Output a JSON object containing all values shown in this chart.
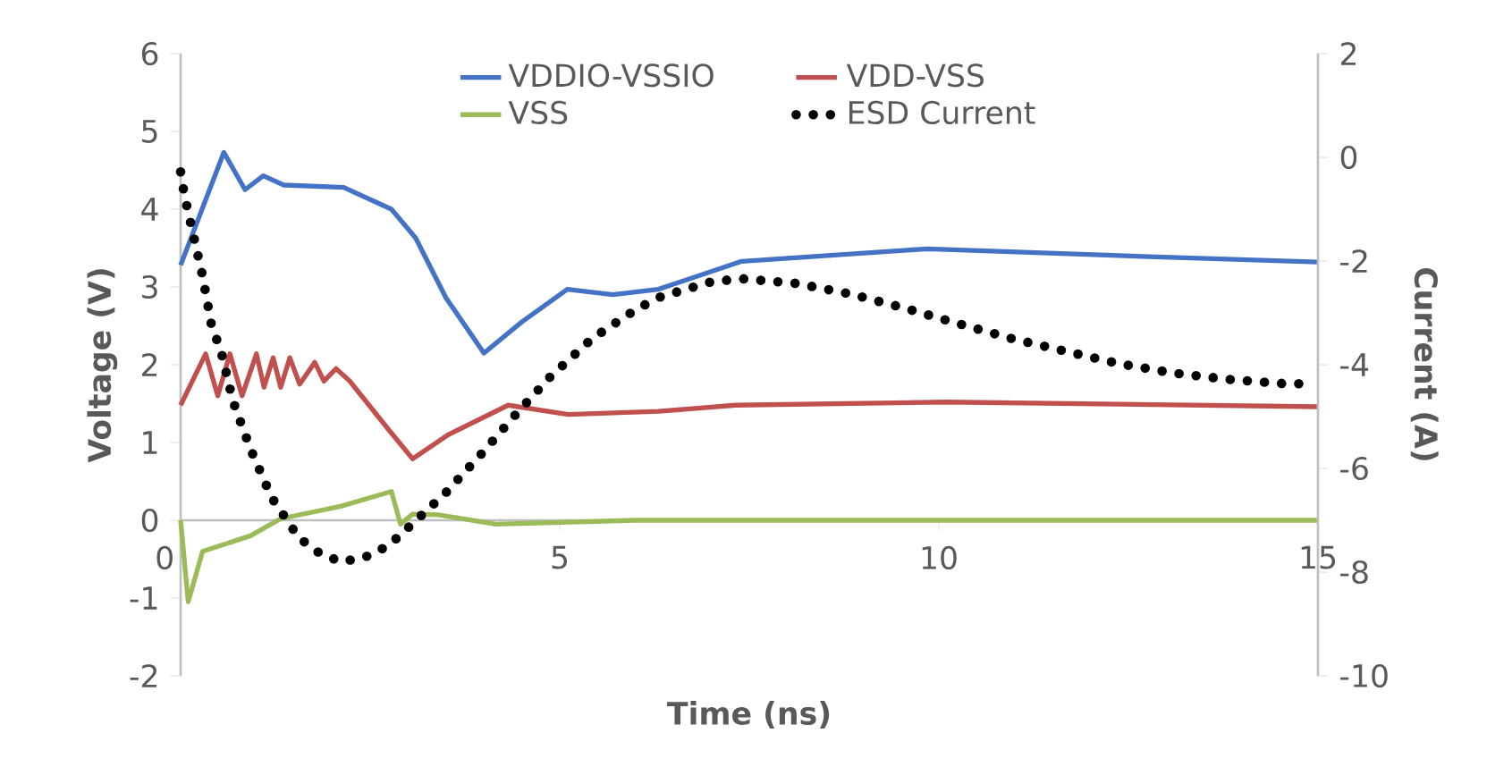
{
  "chart_data": {
    "type": "line",
    "xlabel": "Time (ns)",
    "ylabel": "Voltage (V)",
    "y2label": "Current (A)",
    "xlim": [
      0,
      15
    ],
    "xticks": [
      0,
      5,
      10,
      15
    ],
    "ylim": [
      -2,
      6
    ],
    "yticks": [
      -2,
      -1,
      0,
      1,
      2,
      3,
      4,
      5,
      6
    ],
    "y2lim": [
      -10,
      2
    ],
    "y2ticks": [
      -10,
      -8,
      -6,
      -4,
      -2,
      0,
      2
    ],
    "legend": "top",
    "grid": false,
    "marker": "none",
    "series": [
      {
        "name": "VDDIO-VSSIO",
        "color": "#4472c4",
        "line_style": "solid",
        "x": [
          0,
          0.57,
          0.85,
          1.09,
          1.36,
          2.15,
          2.78,
          3.1,
          3.5,
          4.0,
          4.5,
          5.1,
          5.7,
          6.3,
          7.4,
          9.85,
          12.46,
          15
        ],
        "values": [
          3.28,
          4.73,
          4.25,
          4.43,
          4.31,
          4.28,
          4.0,
          3.63,
          2.86,
          2.15,
          2.55,
          2.97,
          2.9,
          2.97,
          3.33,
          3.49,
          3.4,
          3.32
        ]
      },
      {
        "name": "VDD-VSS",
        "color": "#c0504d",
        "line_style": "solid",
        "x": [
          0,
          0.33,
          0.49,
          0.65,
          0.81,
          1.0,
          1.1,
          1.22,
          1.32,
          1.44,
          1.57,
          1.77,
          1.89,
          2.05,
          2.23,
          2.74,
          3.06,
          3.53,
          4.32,
          5.11,
          6.3,
          7.32,
          10.09,
          15
        ],
        "values": [
          1.48,
          2.14,
          1.6,
          2.14,
          1.6,
          2.14,
          1.71,
          2.09,
          1.71,
          2.09,
          1.75,
          2.03,
          1.79,
          1.95,
          1.79,
          1.17,
          0.79,
          1.1,
          1.48,
          1.36,
          1.4,
          1.48,
          1.52,
          1.46
        ]
      },
      {
        "name": "VSS",
        "color": "#9bbb59",
        "line_style": "solid",
        "x": [
          0,
          0.1,
          0.29,
          0.92,
          1.32,
          2.11,
          2.78,
          2.9,
          3.06,
          3.4,
          4.16,
          6,
          15
        ],
        "values": [
          0,
          -1.05,
          -0.4,
          -0.2,
          0.02,
          0.18,
          0.37,
          -0.05,
          0.08,
          0.07,
          -0.05,
          0,
          0
        ]
      },
      {
        "name": "ESD Current",
        "color": "#000000",
        "line_style": "dotted",
        "axis": "y2",
        "x": [
          0,
          0.05,
          0.21,
          0.29,
          0.41,
          0.53,
          0.69,
          0.92,
          1.2,
          1.56,
          1.83,
          2.11,
          2.42,
          2.74,
          2.98,
          3.49,
          3.96,
          4.4,
          4.87,
          5.43,
          6.02,
          6.33,
          7.0,
          7.4,
          8.11,
          8.82,
          9.53,
          10.24,
          10.95,
          11.67,
          12.38,
          13.09,
          13.8,
          14.51,
          14.86
        ],
        "values": [
          -0.28,
          -0.73,
          -1.77,
          -2.29,
          -3.26,
          -3.72,
          -4.7,
          -5.62,
          -6.56,
          -7.34,
          -7.63,
          -7.8,
          -7.72,
          -7.49,
          -7.17,
          -6.48,
          -5.73,
          -4.99,
          -4.24,
          -3.49,
          -2.92,
          -2.69,
          -2.4,
          -2.34,
          -2.43,
          -2.63,
          -2.9,
          -3.2,
          -3.49,
          -3.74,
          -3.98,
          -4.16,
          -4.28,
          -4.36,
          -4.37
        ]
      }
    ]
  }
}
